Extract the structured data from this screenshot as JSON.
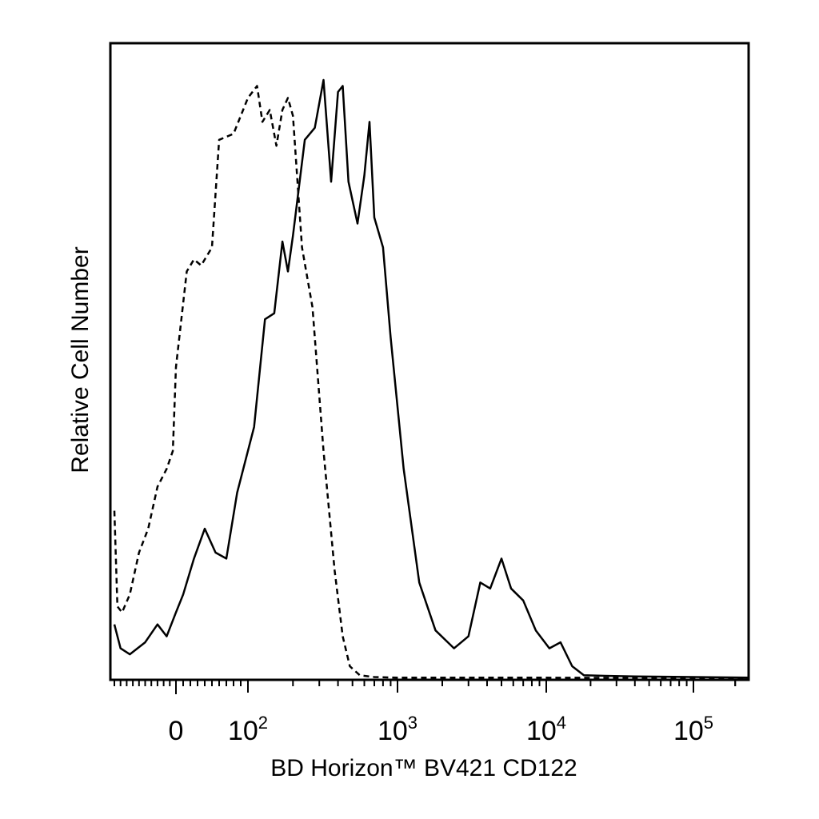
{
  "chart_data": {
    "type": "area",
    "xlabel": "BD Horizon™ BV421 CD122",
    "ylabel": "Relative Cell Number",
    "x_scale": "biexponential",
    "xlim": [
      -200,
      250000
    ],
    "ylim": [
      0,
      1
    ],
    "grid": false,
    "legend": "none",
    "tick_labels": [
      {
        "value": 0,
        "base": "0",
        "exp": ""
      },
      {
        "value": 100,
        "base": "10",
        "exp": "2"
      },
      {
        "value": 1000,
        "base": "10",
        "exp": "3"
      },
      {
        "value": 10000,
        "base": "10",
        "exp": "4"
      },
      {
        "value": 100000,
        "base": "10",
        "exp": "5"
      }
    ],
    "series": [
      {
        "style": "solid",
        "color": "#000000",
        "points": [
          [
            -200,
            0.09
          ],
          [
            -180,
            0.05
          ],
          [
            -150,
            0.04
          ],
          [
            -100,
            0.06
          ],
          [
            -60,
            0.09
          ],
          [
            -30,
            0.07
          ],
          [
            0,
            0.11
          ],
          [
            10,
            0.14
          ],
          [
            25,
            0.2
          ],
          [
            40,
            0.25
          ],
          [
            55,
            0.21
          ],
          [
            70,
            0.2
          ],
          [
            85,
            0.31
          ],
          [
            110,
            0.42
          ],
          [
            130,
            0.6
          ],
          [
            150,
            0.61
          ],
          [
            170,
            0.73
          ],
          [
            185,
            0.68
          ],
          [
            200,
            0.74
          ],
          [
            240,
            0.9
          ],
          [
            280,
            0.92
          ],
          [
            320,
            1.0
          ],
          [
            360,
            0.83
          ],
          [
            400,
            0.98
          ],
          [
            430,
            0.99
          ],
          [
            470,
            0.83
          ],
          [
            540,
            0.76
          ],
          [
            600,
            0.84
          ],
          [
            650,
            0.93
          ],
          [
            700,
            0.77
          ],
          [
            800,
            0.72
          ],
          [
            900,
            0.57
          ],
          [
            1100,
            0.35
          ],
          [
            1400,
            0.16
          ],
          [
            1800,
            0.08
          ],
          [
            2400,
            0.05
          ],
          [
            3000,
            0.07
          ],
          [
            3600,
            0.16
          ],
          [
            4200,
            0.15
          ],
          [
            5000,
            0.2
          ],
          [
            5800,
            0.15
          ],
          [
            7000,
            0.13
          ],
          [
            8500,
            0.08
          ],
          [
            10500,
            0.05
          ],
          [
            12500,
            0.06
          ],
          [
            15000,
            0.02
          ],
          [
            18000,
            0.005
          ],
          [
            25000,
            0.004
          ],
          [
            40000,
            0.003
          ],
          [
            100000,
            0.002
          ],
          [
            250000,
            0.001
          ]
        ]
      },
      {
        "style": "dashed",
        "color": "#000000",
        "points": [
          [
            -200,
            0.28
          ],
          [
            -190,
            0.12
          ],
          [
            -175,
            0.11
          ],
          [
            -150,
            0.14
          ],
          [
            -120,
            0.21
          ],
          [
            -90,
            0.25
          ],
          [
            -60,
            0.32
          ],
          [
            -30,
            0.35
          ],
          [
            -10,
            0.38
          ],
          [
            0,
            0.52
          ],
          [
            15,
            0.68
          ],
          [
            25,
            0.7
          ],
          [
            35,
            0.69
          ],
          [
            50,
            0.72
          ],
          [
            60,
            0.9
          ],
          [
            80,
            0.91
          ],
          [
            100,
            0.97
          ],
          [
            115,
            0.99
          ],
          [
            125,
            0.93
          ],
          [
            140,
            0.95
          ],
          [
            155,
            0.89
          ],
          [
            170,
            0.95
          ],
          [
            185,
            0.97
          ],
          [
            200,
            0.94
          ],
          [
            230,
            0.72
          ],
          [
            270,
            0.62
          ],
          [
            320,
            0.38
          ],
          [
            380,
            0.18
          ],
          [
            430,
            0.07
          ],
          [
            480,
            0.02
          ],
          [
            560,
            0.005
          ],
          [
            700,
            0.002
          ],
          [
            1000,
            0.001
          ],
          [
            10000,
            0.001
          ],
          [
            250000,
            0.0
          ]
        ]
      }
    ]
  }
}
